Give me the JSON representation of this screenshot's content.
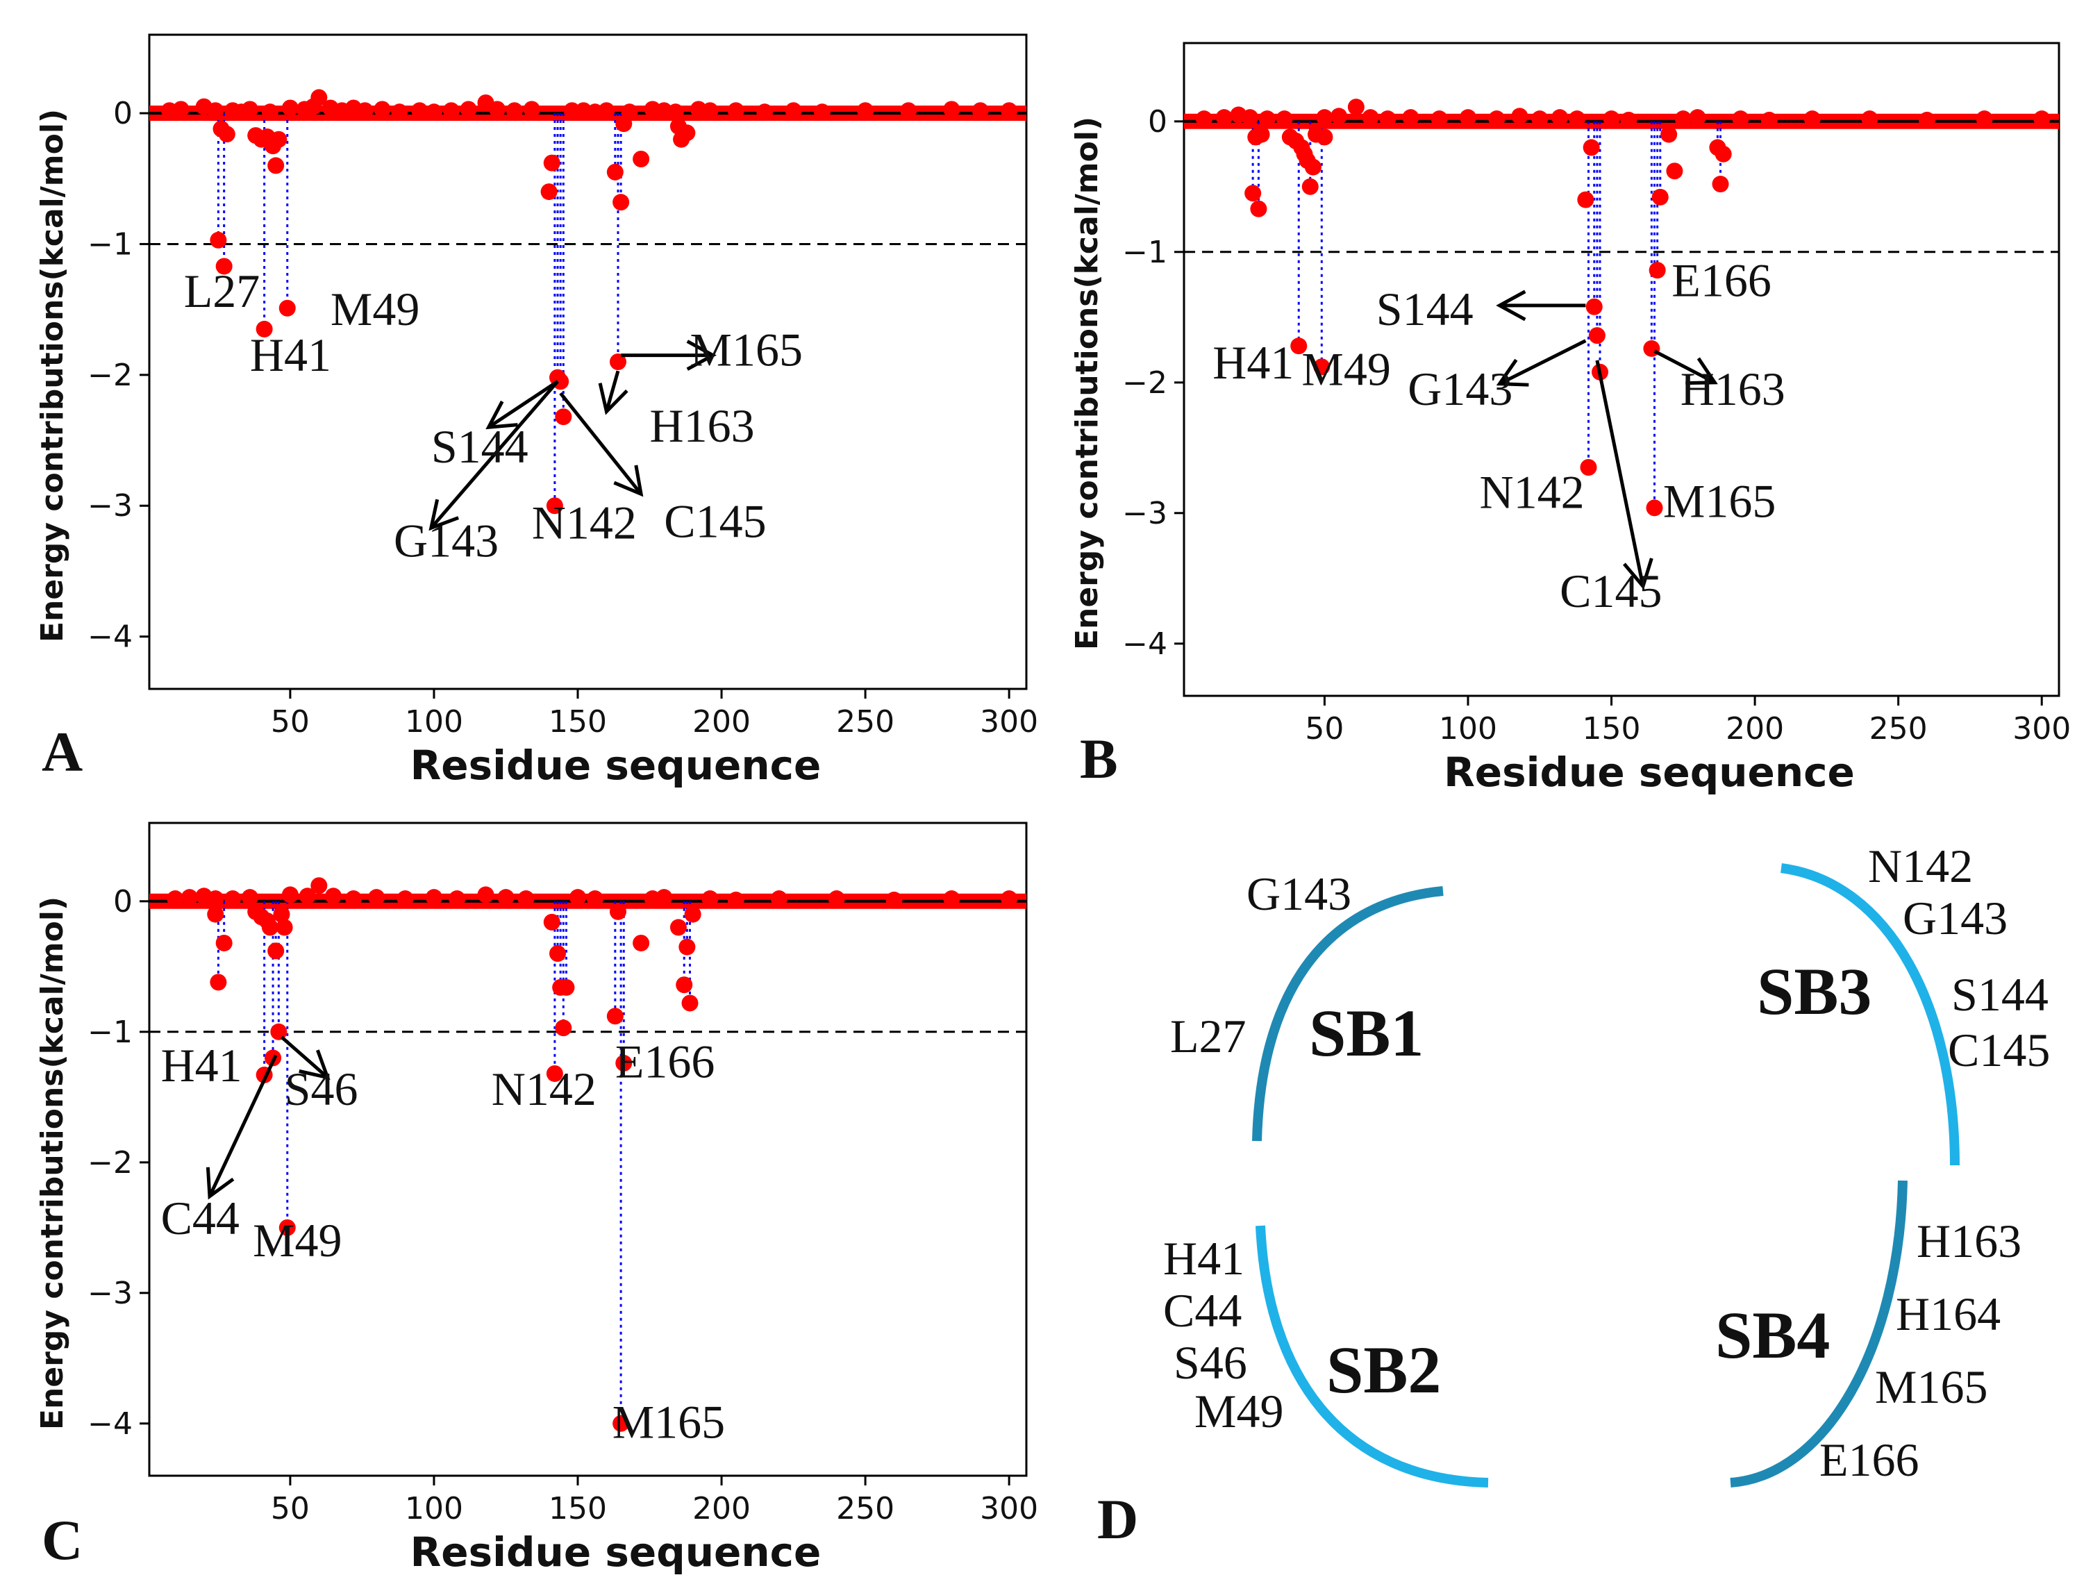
{
  "figure_panels": [
    "A",
    "B",
    "C",
    "D"
  ],
  "chart_data": [
    {
      "panel": "A",
      "type": "scatter",
      "xlabel": "Residue sequence",
      "ylabel": "Energy contributions(kcal/mol)",
      "xlim": [
        1,
        306
      ],
      "ylim": [
        -4.4,
        0.6
      ],
      "xticks": [
        50,
        100,
        150,
        200,
        250,
        300
      ],
      "yticks": [
        0,
        -1,
        -2,
        -3,
        -4
      ],
      "threshold": -1,
      "baseline_points": [
        [
          8,
          0.02
        ],
        [
          12,
          0.03
        ],
        [
          20,
          0.05
        ],
        [
          24,
          0.02
        ],
        [
          30,
          0.02
        ],
        [
          33,
          0.01
        ],
        [
          36,
          0.03
        ],
        [
          43,
          0.01
        ],
        [
          50,
          0.04
        ],
        [
          55,
          0.03
        ],
        [
          58,
          0.05
        ],
        [
          60,
          0.12
        ],
        [
          64,
          0.04
        ],
        [
          68,
          0.02
        ],
        [
          72,
          0.04
        ],
        [
          76,
          0.02
        ],
        [
          82,
          0.03
        ],
        [
          88,
          0.01
        ],
        [
          95,
          0.02
        ],
        [
          100,
          0.01
        ],
        [
          106,
          0.02
        ],
        [
          112,
          0.03
        ],
        [
          118,
          0.08
        ],
        [
          122,
          0.03
        ],
        [
          128,
          0.02
        ],
        [
          134,
          0.03
        ],
        [
          148,
          0.02
        ],
        [
          152,
          0.02
        ],
        [
          156,
          0.01
        ],
        [
          160,
          0.02
        ],
        [
          168,
          0.01
        ],
        [
          176,
          0.03
        ],
        [
          180,
          0.02
        ],
        [
          184,
          0.01
        ],
        [
          192,
          0.03
        ],
        [
          196,
          0.02
        ],
        [
          205,
          0.02
        ],
        [
          215,
          0.01
        ],
        [
          225,
          0.02
        ],
        [
          235,
          0.01
        ],
        [
          250,
          0.02
        ],
        [
          265,
          0.02
        ],
        [
          280,
          0.03
        ],
        [
          290,
          0.02
        ],
        [
          300,
          0.02
        ]
      ],
      "points": [
        [
          25,
          -0.97
        ],
        [
          26,
          -0.12
        ],
        [
          27,
          -1.17
        ],
        [
          28,
          -0.16
        ],
        [
          38,
          -0.17
        ],
        [
          40,
          -0.2
        ],
        [
          41,
          -1.65
        ],
        [
          42,
          -0.18
        ],
        [
          43,
          -0.22
        ],
        [
          44,
          -0.25
        ],
        [
          45,
          -0.4
        ],
        [
          46,
          -0.2
        ],
        [
          49,
          -1.49
        ],
        [
          140,
          -0.6
        ],
        [
          141,
          -0.38
        ],
        [
          142,
          -3.0
        ],
        [
          143,
          -2.02
        ],
        [
          144,
          -2.05
        ],
        [
          145,
          -2.32
        ],
        [
          163,
          -0.45
        ],
        [
          164,
          -1.9
        ],
        [
          165,
          -0.68
        ],
        [
          166,
          -0.08
        ],
        [
          172,
          -0.35
        ],
        [
          185,
          -0.1
        ],
        [
          186,
          -0.2
        ],
        [
          188,
          -0.15
        ]
      ],
      "stems": [
        25,
        27,
        41,
        49,
        142,
        143,
        144,
        145,
        163,
        164,
        165
      ],
      "labels": [
        {
          "text": "L27",
          "x": 13,
          "y": -1.48
        },
        {
          "text": "H41",
          "x": 36,
          "y": -1.97
        },
        {
          "text": "M49",
          "x": 64,
          "y": -1.62
        },
        {
          "text": "M165",
          "x": 189,
          "y": -1.93
        },
        {
          "text": "S144",
          "x": 99,
          "y": -2.67
        },
        {
          "text": "H163",
          "x": 175,
          "y": -2.51
        },
        {
          "text": "G143",
          "x": 86,
          "y": -3.39
        },
        {
          "text": "N142",
          "x": 134,
          "y": -3.25
        },
        {
          "text": "C145",
          "x": 180,
          "y": -3.24
        }
      ],
      "arrows": [
        [
          165,
          -1.85,
          197,
          -1.85
        ],
        [
          143,
          -2.05,
          119,
          -2.4
        ],
        [
          143,
          -2.05,
          99,
          -3.17
        ],
        [
          144,
          -2.14,
          172,
          -2.91
        ],
        [
          164,
          -1.97,
          160,
          -2.28
        ]
      ]
    },
    {
      "panel": "B",
      "type": "scatter",
      "xlabel": "Residue sequence",
      "ylabel": "Energy contributions(kcal/mol)",
      "xlim": [
        1,
        306
      ],
      "ylim": [
        -4.4,
        0.6
      ],
      "xticks": [
        50,
        100,
        150,
        200,
        250,
        300
      ],
      "yticks": [
        0,
        -1,
        -2,
        -3,
        -4
      ],
      "threshold": -1,
      "baseline_points": [
        [
          8,
          0.02
        ],
        [
          15,
          0.03
        ],
        [
          20,
          0.05
        ],
        [
          24,
          0.03
        ],
        [
          30,
          0.02
        ],
        [
          36,
          0.02
        ],
        [
          50,
          0.03
        ],
        [
          55,
          0.04
        ],
        [
          61,
          0.11
        ],
        [
          66,
          0.03
        ],
        [
          72,
          0.02
        ],
        [
          80,
          0.03
        ],
        [
          90,
          0.02
        ],
        [
          100,
          0.03
        ],
        [
          110,
          0.02
        ],
        [
          118,
          0.04
        ],
        [
          125,
          0.02
        ],
        [
          132,
          0.03
        ],
        [
          138,
          0.02
        ],
        [
          150,
          0.02
        ],
        [
          156,
          0.01
        ],
        [
          175,
          0.02
        ],
        [
          180,
          0.03
        ],
        [
          195,
          0.02
        ],
        [
          205,
          0.01
        ],
        [
          220,
          0.02
        ],
        [
          240,
          0.02
        ],
        [
          260,
          0.01
        ],
        [
          280,
          0.02
        ],
        [
          300,
          0.02
        ]
      ],
      "points": [
        [
          25,
          -0.55
        ],
        [
          26,
          -0.12
        ],
        [
          27,
          -0.67
        ],
        [
          28,
          -0.1
        ],
        [
          38,
          -0.12
        ],
        [
          40,
          -0.15
        ],
        [
          41,
          -1.72
        ],
        [
          42,
          -0.2
        ],
        [
          43,
          -0.25
        ],
        [
          44,
          -0.3
        ],
        [
          45,
          -0.5
        ],
        [
          46,
          -0.35
        ],
        [
          47,
          -0.1
        ],
        [
          49,
          -1.88
        ],
        [
          50,
          -0.12
        ],
        [
          141,
          -0.6
        ],
        [
          142,
          -2.65
        ],
        [
          143,
          -0.2
        ],
        [
          144,
          -1.42
        ],
        [
          145,
          -1.64
        ],
        [
          146,
          -1.92
        ],
        [
          164,
          -1.74
        ],
        [
          165,
          -2.96
        ],
        [
          166,
          -1.14
        ],
        [
          167,
          -0.58
        ],
        [
          170,
          -0.1
        ],
        [
          172,
          -0.38
        ],
        [
          187,
          -0.2
        ],
        [
          188,
          -0.48
        ],
        [
          189,
          -0.25
        ]
      ],
      "stems": [
        25,
        27,
        41,
        45,
        49,
        142,
        144,
        145,
        146,
        164,
        165,
        166,
        167,
        187,
        188
      ],
      "labels": [
        {
          "text": "E166",
          "x": 171,
          "y": -1.34
        },
        {
          "text": "S144",
          "x": 68,
          "y": -1.56
        },
        {
          "text": "H41",
          "x": 11,
          "y": -1.97
        },
        {
          "text": "M49",
          "x": 42,
          "y": -2.02
        },
        {
          "text": "G143",
          "x": 79,
          "y": -2.17
        },
        {
          "text": "H163",
          "x": 174,
          "y": -2.17
        },
        {
          "text": "N142",
          "x": 104,
          "y": -2.96
        },
        {
          "text": "M165",
          "x": 168,
          "y": -3.03
        },
        {
          "text": "C145",
          "x": 132,
          "y": -3.72
        }
      ],
      "arrows": [
        [
          141,
          -1.41,
          111,
          -1.41
        ],
        [
          141,
          -1.68,
          111,
          -2.01
        ],
        [
          145,
          -1.83,
          161,
          -3.56
        ],
        [
          165,
          -1.76,
          186,
          -2.0
        ]
      ]
    },
    {
      "panel": "C",
      "type": "scatter",
      "xlabel": "Residue sequence",
      "ylabel": "Energy contributions(kcal/mol)",
      "xlim": [
        1,
        306
      ],
      "ylim": [
        -4.4,
        0.6
      ],
      "xticks": [
        50,
        100,
        150,
        200,
        250,
        300
      ],
      "yticks": [
        0,
        -1,
        -2,
        -3,
        -4
      ],
      "threshold": -1,
      "baseline_points": [
        [
          10,
          0.02
        ],
        [
          15,
          0.03
        ],
        [
          20,
          0.04
        ],
        [
          24,
          0.02
        ],
        [
          30,
          0.02
        ],
        [
          36,
          0.03
        ],
        [
          50,
          0.05
        ],
        [
          56,
          0.04
        ],
        [
          60,
          0.12
        ],
        [
          65,
          0.04
        ],
        [
          72,
          0.02
        ],
        [
          80,
          0.03
        ],
        [
          90,
          0.02
        ],
        [
          100,
          0.03
        ],
        [
          108,
          0.02
        ],
        [
          118,
          0.05
        ],
        [
          125,
          0.03
        ],
        [
          132,
          0.02
        ],
        [
          150,
          0.03
        ],
        [
          156,
          0.02
        ],
        [
          176,
          0.02
        ],
        [
          180,
          0.03
        ],
        [
          196,
          0.02
        ],
        [
          205,
          0.01
        ],
        [
          220,
          0.02
        ],
        [
          240,
          0.02
        ],
        [
          260,
          0.01
        ],
        [
          280,
          0.02
        ],
        [
          300,
          0.02
        ]
      ],
      "points": [
        [
          24,
          -0.1
        ],
        [
          25,
          -0.62
        ],
        [
          27,
          -0.32
        ],
        [
          38,
          -0.08
        ],
        [
          40,
          -0.12
        ],
        [
          41,
          -1.33
        ],
        [
          42,
          -0.15
        ],
        [
          43,
          -0.2
        ],
        [
          44,
          -1.2
        ],
        [
          45,
          -0.38
        ],
        [
          46,
          -1.0
        ],
        [
          47,
          -0.1
        ],
        [
          48,
          -0.2
        ],
        [
          49,
          -2.5
        ],
        [
          141,
          -0.16
        ],
        [
          142,
          -1.32
        ],
        [
          143,
          -0.4
        ],
        [
          144,
          -0.66
        ],
        [
          145,
          -0.97
        ],
        [
          146,
          -0.66
        ],
        [
          163,
          -0.88
        ],
        [
          164,
          -0.08
        ],
        [
          165,
          -4.0
        ],
        [
          166,
          -1.24
        ],
        [
          172,
          -0.32
        ],
        [
          185,
          -0.2
        ],
        [
          187,
          -0.64
        ],
        [
          188,
          -0.35
        ],
        [
          189,
          -0.78
        ],
        [
          190,
          -0.1
        ]
      ],
      "stems": [
        25,
        27,
        41,
        44,
        45,
        46,
        49,
        142,
        143,
        144,
        145,
        146,
        163,
        165,
        166,
        187,
        188,
        189
      ],
      "labels": [
        {
          "text": "H41",
          "x": 5,
          "y": -1.38
        },
        {
          "text": "S46",
          "x": 48,
          "y": -1.56
        },
        {
          "text": "N142",
          "x": 120,
          "y": -1.56
        },
        {
          "text": "E166",
          "x": 163,
          "y": -1.35
        },
        {
          "text": "C44",
          "x": 5,
          "y": -2.55
        },
        {
          "text": "M49",
          "x": 37,
          "y": -2.72
        },
        {
          "text": "M165",
          "x": 162,
          "y": -4.11
        }
      ],
      "arrows": [
        [
          45,
          -1.18,
          22,
          -2.26
        ],
        [
          47,
          -1.04,
          63,
          -1.35
        ]
      ]
    }
  ],
  "diagram": {
    "subsites": [
      {
        "name": "SB1",
        "residues": [
          "G143",
          "L27"
        ]
      },
      {
        "name": "SB2",
        "residues": [
          "H41",
          "C44",
          "S46",
          "M49"
        ]
      },
      {
        "name": "SB3",
        "residues": [
          "N142",
          "G143",
          "S144",
          "C145"
        ]
      },
      {
        "name": "SB4",
        "residues": [
          "H163",
          "H164",
          "M165",
          "E166"
        ]
      }
    ],
    "colors": {
      "dark_arc": "#1e8ab4",
      "light_arc": "#1fb2e8"
    }
  },
  "colors": {
    "point": "#ff0000",
    "stem": "#0000ff",
    "text": "#111111",
    "threshold": "#000000"
  }
}
